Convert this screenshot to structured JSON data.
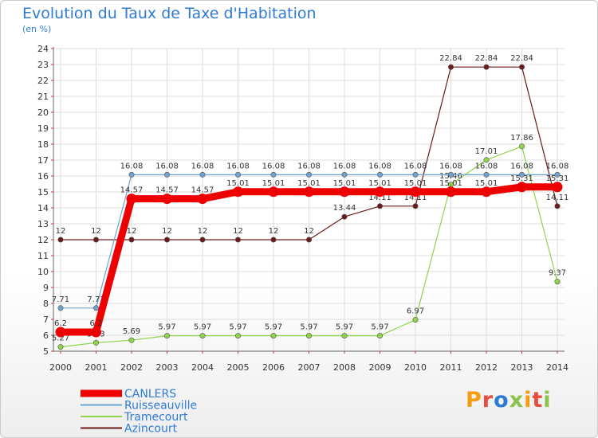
{
  "title": "Evolution du Taux de Taxe d'Habitation",
  "subtitle": "(en %)",
  "brand": {
    "text": "Proxiti",
    "letter_colors": [
      "#f39c12",
      "#e74c3c",
      "#2e7bd6",
      "#8bc34a",
      "#f39c12",
      "#e74c3c",
      "#8bc34a"
    ]
  },
  "chart_data": {
    "type": "line",
    "title": "Evolution du Taux de Taxe d'Habitation",
    "ylabel": "(en %)",
    "xlabel": "",
    "ylim": [
      5,
      24
    ],
    "yticks": [
      5,
      6,
      7,
      8,
      9,
      10,
      11,
      12,
      13,
      14,
      15,
      16,
      17,
      18,
      19,
      20,
      21,
      22,
      23,
      24
    ],
    "grid": true,
    "legend_position": "bottom-left",
    "categories": [
      "2000",
      "2001",
      "2002",
      "2003",
      "2004",
      "2005",
      "2006",
      "2007",
      "2008",
      "2009",
      "2010",
      "2011",
      "2012",
      "2013",
      "2014"
    ],
    "series": [
      {
        "name": "Azincourt",
        "color": "#6b1a1a",
        "emphasis": false,
        "values": [
          12,
          12,
          12,
          12,
          12,
          12,
          12,
          12,
          13.44,
          14.11,
          14.11,
          22.84,
          22.84,
          22.84,
          14.11
        ],
        "labels": [
          "12",
          "12",
          "12",
          "12",
          "12",
          "12",
          "12",
          "12",
          "13.44",
          "14.11",
          "14.11",
          "22.84",
          "22.84",
          "22.84",
          "14.11"
        ]
      },
      {
        "name": "Tramecourt",
        "color": "#8fd44a",
        "emphasis": false,
        "values": [
          5.27,
          5.53,
          5.69,
          5.97,
          5.97,
          5.97,
          5.97,
          5.97,
          5.97,
          5.97,
          6.97,
          15.46,
          17.01,
          17.86,
          9.37
        ],
        "labels": [
          "5.27",
          "5.53",
          "5.69",
          "5.97",
          "5.97",
          "5.97",
          "5.97",
          "5.97",
          "5.97",
          "5.97",
          "6.97",
          "15.46",
          "17.01",
          "17.86",
          "9.37"
        ]
      },
      {
        "name": "Ruisseauville",
        "color": "#6ea3cf",
        "emphasis": false,
        "values": [
          7.71,
          7.71,
          16.08,
          16.08,
          16.08,
          16.08,
          16.08,
          16.08,
          16.08,
          16.08,
          16.08,
          16.08,
          16.08,
          16.08,
          16.08
        ],
        "labels": [
          "7.71",
          "7.71",
          "16.08",
          "16.08",
          "16.08",
          "16.08",
          "16.08",
          "16.08",
          "16.08",
          "16.08",
          "16.08",
          "16.08",
          "16.08",
          "16.08",
          "16.08"
        ]
      },
      {
        "name": "CANLERS",
        "color": "#ee0000",
        "emphasis": true,
        "values": [
          6.2,
          6.2,
          14.57,
          14.57,
          14.57,
          15.01,
          15.01,
          15.01,
          15.01,
          15.01,
          15.01,
          15.01,
          15.01,
          15.31,
          15.31
        ],
        "labels": [
          "6.2",
          "6.2",
          "14.57",
          "14.57",
          "14.57",
          "15.01",
          "15.01",
          "15.01",
          "15.01",
          "15.01",
          "15.01",
          "15.01",
          "15.01",
          "15.31",
          "15.31"
        ]
      }
    ],
    "legend": [
      "CANLERS",
      "Ruisseauville",
      "Tramecourt",
      "Azincourt"
    ]
  }
}
